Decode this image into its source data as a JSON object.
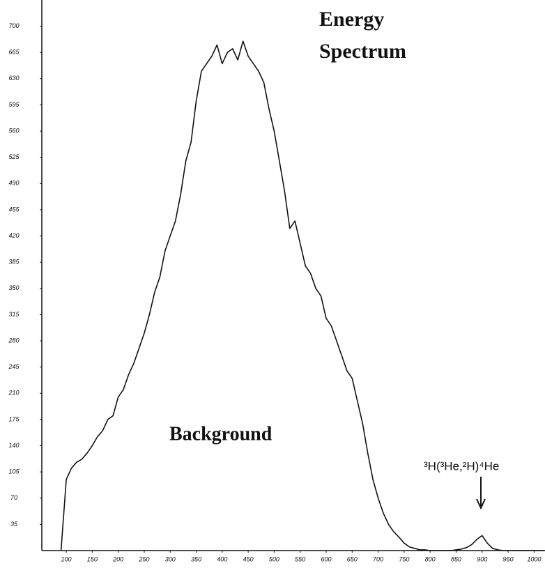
{
  "chart_data": {
    "type": "line",
    "title": [
      "Energy",
      "Spectrum"
    ],
    "annotations": [
      "Background",
      "³H(³He,²H)⁴He"
    ],
    "x": [
      90,
      100,
      110,
      120,
      130,
      140,
      150,
      160,
      170,
      180,
      190,
      200,
      210,
      220,
      230,
      240,
      250,
      260,
      270,
      280,
      290,
      300,
      310,
      320,
      330,
      340,
      350,
      360,
      370,
      380,
      390,
      400,
      410,
      420,
      430,
      440,
      450,
      460,
      470,
      480,
      490,
      500,
      510,
      520,
      530,
      540,
      550,
      560,
      570,
      580,
      590,
      600,
      610,
      620,
      630,
      640,
      650,
      660,
      670,
      680,
      690,
      700,
      710,
      720,
      730,
      740,
      750,
      760,
      770,
      780,
      790,
      800,
      810,
      820,
      830,
      840,
      850,
      860,
      870,
      880,
      890,
      900,
      910,
      920,
      930,
      940,
      950,
      960,
      970,
      980,
      990,
      1000,
      1010,
      1020
    ],
    "series": [
      {
        "color": "#111111",
        "values": [
          0,
          95,
          110,
          118,
          122,
          130,
          140,
          152,
          160,
          175,
          180,
          205,
          215,
          235,
          250,
          270,
          290,
          315,
          345,
          365,
          400,
          420,
          440,
          475,
          520,
          545,
          600,
          640,
          650,
          660,
          675,
          650,
          665,
          670,
          655,
          680,
          660,
          650,
          640,
          625,
          590,
          560,
          520,
          480,
          430,
          440,
          410,
          380,
          370,
          350,
          340,
          310,
          300,
          280,
          260,
          240,
          230,
          200,
          170,
          130,
          95,
          70,
          50,
          35,
          25,
          18,
          10,
          5,
          3,
          1,
          1,
          0,
          0,
          0,
          0,
          0,
          1,
          2,
          4,
          8,
          15,
          20,
          10,
          3,
          1,
          0,
          0,
          0,
          0,
          0,
          0,
          0,
          0,
          0
        ]
      }
    ],
    "xlim": [
      53,
      1021
    ],
    "ylim": [
      0,
      735
    ],
    "xticks": [
      100,
      150,
      200,
      250,
      300,
      350,
      400,
      450,
      500,
      550,
      600,
      650,
      700,
      750,
      800,
      850,
      900,
      950,
      1000
    ],
    "yticks": [
      35,
      70,
      105,
      140,
      175,
      210,
      245,
      280,
      315,
      350,
      385,
      420,
      455,
      490,
      525,
      560,
      595,
      630,
      665,
      700
    ],
    "grid": false
  }
}
